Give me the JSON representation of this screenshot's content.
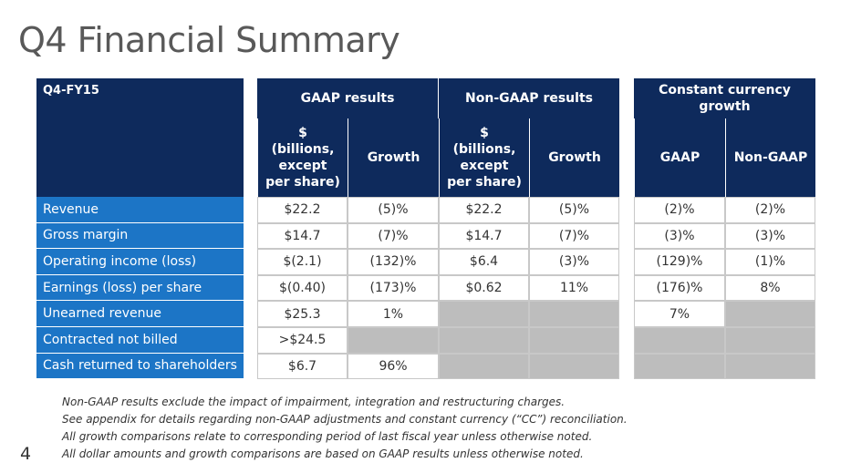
{
  "title": "Q4 Financial Summary",
  "period_label": "Q4-FY15",
  "groups": {
    "gaap": "GAAP results",
    "non_gaap": "Non-GAAP results",
    "constant_currency": "Constant currency growth"
  },
  "subheaders": {
    "dollars": "$ (billions, except per share)",
    "growth": "Growth",
    "gaap": "GAAP",
    "non_gaap": "Non-GAAP"
  },
  "rows": [
    {
      "label": "Revenue",
      "gaap_value": "$22.2",
      "gaap_growth": "(5)%",
      "ng_value": "$22.2",
      "ng_growth": "(5)%",
      "cc_gaap": "(2)%",
      "cc_ng": "(2)%"
    },
    {
      "label": "Gross margin",
      "gaap_value": "$14.7",
      "gaap_growth": "(7)%",
      "ng_value": "$14.7",
      "ng_growth": "(7)%",
      "cc_gaap": "(3)%",
      "cc_ng": "(3)%"
    },
    {
      "label": "Operating income (loss)",
      "gaap_value": "$(2.1)",
      "gaap_growth": "(132)%",
      "ng_value": "$6.4",
      "ng_growth": "(3)%",
      "cc_gaap": "(129)%",
      "cc_ng": "(1)%"
    },
    {
      "label": "Earnings (loss) per share",
      "gaap_value": "$(0.40)",
      "gaap_growth": "(173)%",
      "ng_value": "$0.62",
      "ng_growth": "11%",
      "cc_gaap": "(176)%",
      "cc_ng": "8%"
    },
    {
      "label": "Unearned revenue",
      "gaap_value": "$25.3",
      "gaap_growth": "1%",
      "ng_value": null,
      "ng_growth": null,
      "cc_gaap": "7%",
      "cc_ng": null
    },
    {
      "label": "Contracted not billed",
      "gaap_value": ">$24.5",
      "gaap_growth": null,
      "ng_value": null,
      "ng_growth": null,
      "cc_gaap": null,
      "cc_ng": null
    },
    {
      "label": "Cash returned to shareholders",
      "gaap_value": "$6.7",
      "gaap_growth": "96%",
      "ng_value": null,
      "ng_growth": null,
      "cc_gaap": null,
      "cc_ng": null
    }
  ],
  "footnotes": [
    "Non-GAAP results exclude the impact of impairment, integration and restructuring charges.",
    "See appendix for details regarding non-GAAP adjustments and constant currency (“CC”) reconciliation.",
    "All growth comparisons relate to corresponding period of last fiscal year unless otherwise noted.",
    "All dollar amounts and growth comparisons are based on GAAP results unless otherwise noted."
  ],
  "page_number": "4",
  "colors": {
    "header_navy": "#0e2a5c",
    "row_label_blue": "#1c75c6",
    "na_gray": "#bdbdbd"
  }
}
